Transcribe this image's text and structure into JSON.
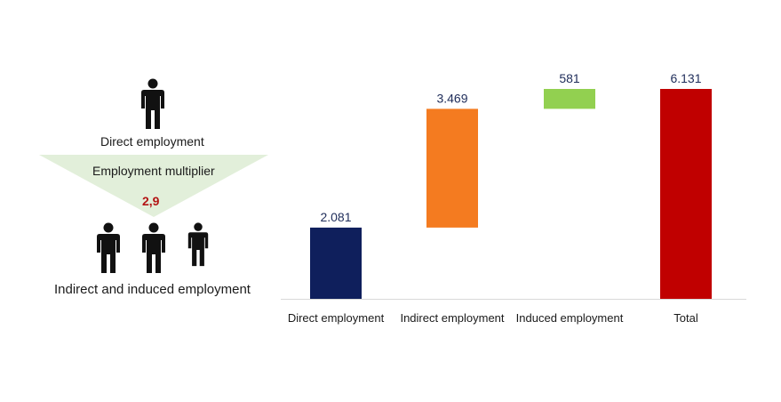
{
  "infographic": {
    "direct_label": "Direct employment",
    "multiplier_label": "Employment multiplier",
    "multiplier_value": "2,9",
    "indirect_label": "Indirect and induced employment",
    "icon": "person-icon",
    "triangle_color": "#e2efda",
    "multiplier_value_color": "#b31414"
  },
  "chart_data": {
    "type": "waterfall",
    "categories": [
      "Direct employment",
      "Indirect employment",
      "Induced employment",
      "Total"
    ],
    "values": [
      2081,
      3469,
      581,
      6131
    ],
    "value_labels": [
      "2.081",
      "3.469",
      "581",
      "6.131"
    ],
    "bar_kinds": [
      "absolute",
      "relative",
      "relative",
      "total"
    ],
    "colors": [
      "#0f1f5c",
      "#f47b20",
      "#92d050",
      "#c00000"
    ],
    "label_color": "#1f2d5a",
    "ylim": [
      0,
      6131
    ],
    "grid": false,
    "legend": "none"
  }
}
